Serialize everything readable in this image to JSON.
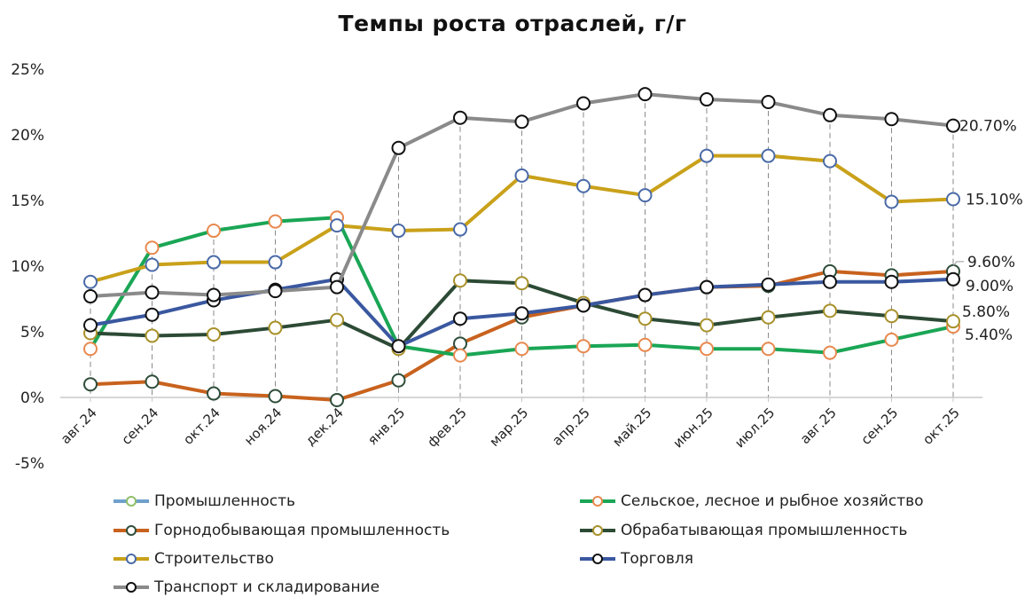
{
  "title": "Темпы роста отраслей, г/г",
  "chart_data": {
    "type": "line",
    "title": "Темпы роста отраслей, г/г",
    "xlabel": "",
    "ylabel": "",
    "ylim": [
      -5,
      25
    ],
    "yticks": [
      "25%",
      "20%",
      "15%",
      "10%",
      "5%",
      "0%",
      "-5%"
    ],
    "grid": "vertical dashed drop lines",
    "legend_position": "bottom",
    "categories": [
      "авг.24",
      "сен.24",
      "окт.24",
      "ноя.24",
      "дек.24",
      "янв.25",
      "фев.25",
      "мар.25",
      "апр.25",
      "май.25",
      "июн.25",
      "июл.25",
      "авг.25",
      "сен.25",
      "окт.25"
    ],
    "series": [
      {
        "name": "Промышленность",
        "line_color": "#6fa0cc",
        "marker_color": "#8fbf6a",
        "values": []
      },
      {
        "name": "Сельское, лесное и рыбное хозяйство",
        "line_color": "#1aa655",
        "marker_color": "#e8894f",
        "values": [
          3.7,
          11.4,
          12.7,
          13.4,
          13.7,
          3.9,
          3.2,
          3.7,
          3.9,
          4.0,
          3.7,
          3.7,
          3.4,
          4.4,
          5.4
        ]
      },
      {
        "name": "Горнодобывающая промышленность",
        "line_color": "#c8621e",
        "marker_color": "#2e4d3a",
        "values": [
          1.0,
          1.2,
          0.3,
          0.1,
          -0.2,
          1.3,
          4.1,
          6.1,
          7.0,
          7.8,
          8.4,
          8.5,
          9.6,
          9.3,
          9.6
        ]
      },
      {
        "name": "Обрабатывающая промышленность",
        "line_color": "#2c4a35",
        "marker_color": "#a8912a",
        "values": [
          4.9,
          4.7,
          4.8,
          5.3,
          5.9,
          3.7,
          8.9,
          8.7,
          7.2,
          6.0,
          5.5,
          6.1,
          6.6,
          6.2,
          5.8
        ]
      },
      {
        "name": "Строительство",
        "line_color": "#c9a11a",
        "marker_color": "#4a6aa8",
        "values": [
          8.8,
          10.1,
          10.3,
          10.3,
          13.1,
          12.7,
          12.8,
          16.9,
          16.1,
          15.4,
          18.4,
          18.4,
          18.0,
          14.9,
          15.1
        ]
      },
      {
        "name": "Торговля",
        "line_color": "#3a58a0",
        "marker_color": "#111111",
        "values": [
          5.5,
          6.3,
          7.4,
          8.2,
          9.0,
          3.9,
          6.0,
          6.4,
          7.0,
          7.8,
          8.4,
          8.6,
          8.8,
          8.8,
          9.0
        ]
      },
      {
        "name": "Транспорт и складирование",
        "line_color": "#8a8a8a",
        "marker_color": "#111111",
        "values": [
          7.7,
          8.0,
          7.8,
          8.1,
          8.4,
          19.0,
          21.3,
          21.0,
          22.4,
          23.1,
          22.7,
          22.5,
          21.5,
          21.2,
          20.7
        ]
      }
    ],
    "annotations": [
      {
        "series": "Транспорт и складирование",
        "x": "окт.25",
        "label": "20.70%"
      },
      {
        "series": "Строительство",
        "x": "окт.25",
        "label": "15.10%"
      },
      {
        "series": "Горнодобывающая промышленность",
        "x": "окт.25",
        "label": "9.60%"
      },
      {
        "series": "Торговля",
        "x": "окт.25",
        "label": "9.00%"
      },
      {
        "series": "Обрабатывающая промышленность",
        "x": "окт.25",
        "label": "5.80%"
      },
      {
        "series": "Сельское, лесное и рыбное хозяйство",
        "x": "окт.25",
        "label": "5.40%"
      }
    ]
  },
  "legend": {
    "items": [
      {
        "label": "Промышленность"
      },
      {
        "label": "Сельское, лесное и рыбное хозяйство"
      },
      {
        "label": "Горнодобывающая промышленность"
      },
      {
        "label": "Обрабатывающая промышленность"
      },
      {
        "label": "Строительство"
      },
      {
        "label": "Торговля"
      },
      {
        "label": "Транспорт и складирование"
      }
    ]
  }
}
